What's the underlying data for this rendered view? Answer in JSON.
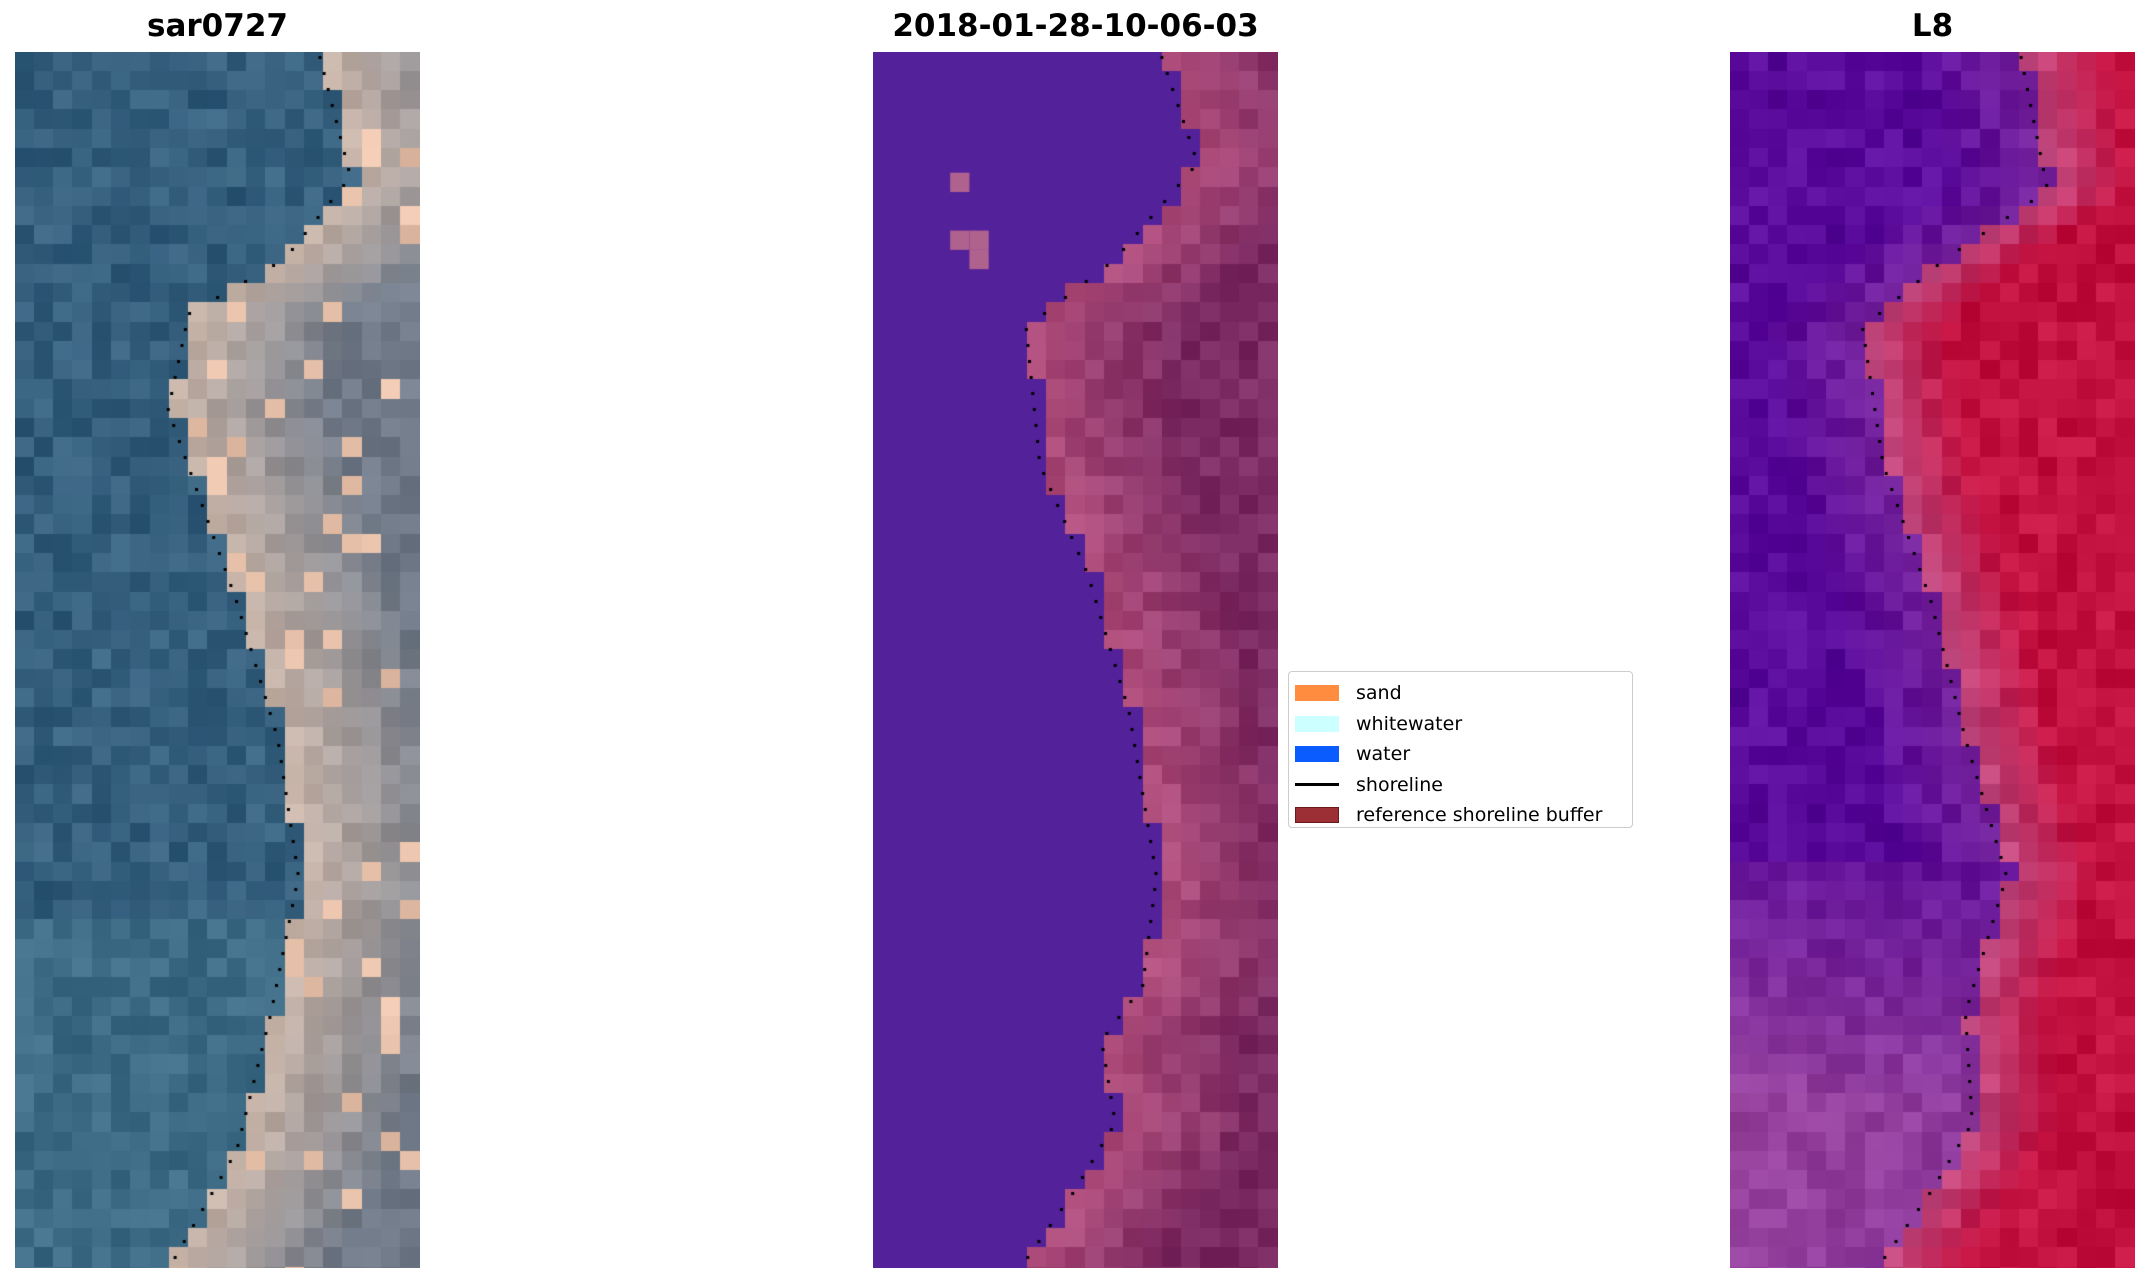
{
  "panels": [
    {
      "title": "sar0727",
      "style": "rgb"
    },
    {
      "title": "2018-01-28-10-06-03",
      "style": "classified"
    },
    {
      "title": "L8",
      "style": "index"
    }
  ],
  "legend": {
    "items": [
      {
        "label": "sand",
        "color": "#ff8c3f",
        "kind": "patch"
      },
      {
        "label": "whitewater",
        "color": "#ccffff",
        "kind": "patch"
      },
      {
        "label": "water",
        "color": "#0a5cff",
        "kind": "patch"
      },
      {
        "label": "shoreline",
        "color": "#000000",
        "kind": "line"
      },
      {
        "label": "reference shoreline buffer",
        "color": "#9b2f35",
        "kind": "patch"
      }
    ]
  },
  "colors": {
    "classified_water": "#53219a",
    "classified_land": "#8e3a6c",
    "index_water": "#5a0a9a",
    "index_land": "#c2103f"
  }
}
